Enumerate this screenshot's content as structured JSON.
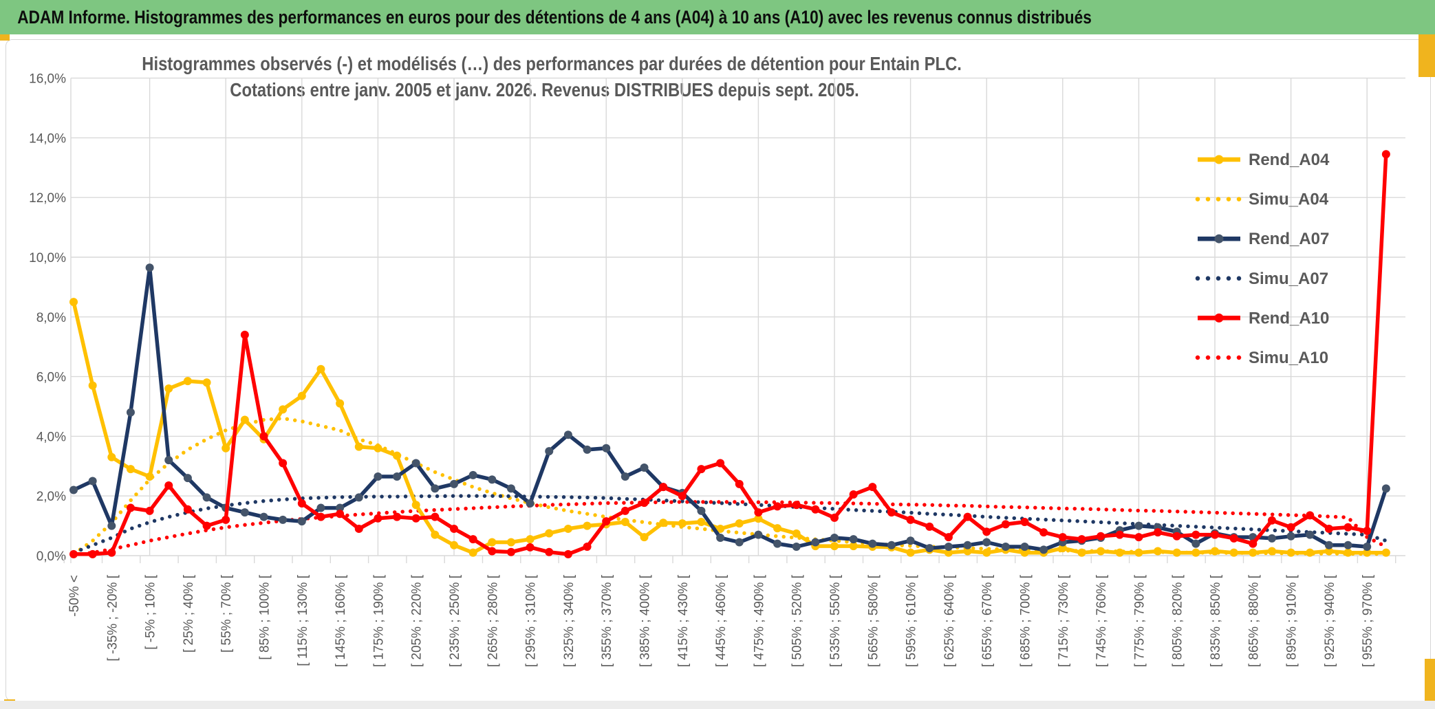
{
  "banner": {
    "title": "ADAM Informe. Histogrammes des performances en euros pour des détentions de 4 ans (A04) à 10 ans (A10) avec les revenus connus distribués"
  },
  "chart_data": {
    "type": "line",
    "title_lines": [
      "Histogrammes observés (-) et modélisés (…) des performances par durées de détention pour Entain PLC.",
      "Cotations entre janv. 2005 et janv. 2026. Revenus DISTRIBUES depuis sept. 2005."
    ],
    "ylabel": "",
    "xlabel": "",
    "ylim": [
      0,
      16
    ],
    "grid": true,
    "legend_position": "right-upper",
    "y_ticks": [
      {
        "value": 0,
        "label": "0,0%"
      },
      {
        "value": 2,
        "label": "2,0%"
      },
      {
        "value": 4,
        "label": "4,0%"
      },
      {
        "value": 6,
        "label": "6,0%"
      },
      {
        "value": 8,
        "label": "8,0%"
      },
      {
        "value": 10,
        "label": "10,0%"
      },
      {
        "value": 12,
        "label": "12,0%"
      },
      {
        "value": 14,
        "label": "14,0%"
      },
      {
        "value": 16,
        "label": "16,0%"
      }
    ],
    "categories": [
      "-50% <",
      "[ -35% ; -20% [",
      "[ -5% ; 10% [",
      "[ 25% ; 40% [",
      "[ 55% ; 70% [",
      "[ 85% ; 100% [",
      "[ 115% ; 130% [",
      "[ 145% ; 160% [",
      "[ 175% ; 190% [",
      "[ 205% ; 220% [",
      "[ 235% ; 250% [",
      "[ 265% ; 280% [",
      "[ 295% ; 310% [",
      "[ 325% ; 340% [",
      "[ 355% ; 370% [",
      "[ 385% ; 400% [",
      "[ 415% ; 430% [",
      "[ 445% ; 460% [",
      "[ 475% ; 490% [",
      "[ 505% ; 520% [",
      "[ 535% ; 550% [",
      "[ 565% ; 580% [",
      "[ 595% ; 610% [",
      "[ 625% ; 640% [",
      "[ 655% ; 670% [",
      "[ 685% ; 700% [",
      "[ 715% ; 730% [",
      "[ 745% ; 760% [",
      "[ 775% ; 790% [",
      "[ 805% ; 820% [",
      "[ 835% ; 850% [",
      "[ 865% ; 880% [",
      "[ 895% ; 910% [",
      "[ 925% ; 940% [",
      "[ 955% ; 970% ["
    ],
    "bins_per_label": 2,
    "n_points": 70,
    "series": [
      {
        "name": "Rend_A04",
        "style": "solid",
        "color": "#FFC000",
        "marker": "#FFC000",
        "values": [
          8.5,
          5.7,
          3.3,
          2.9,
          2.65,
          5.6,
          5.85,
          5.8,
          3.6,
          4.55,
          3.9,
          4.9,
          5.35,
          6.25,
          5.1,
          3.65,
          3.6,
          3.35,
          1.7,
          0.7,
          0.35,
          0.1,
          0.45,
          0.45,
          0.55,
          0.75,
          0.9,
          1.0,
          1.05,
          1.13,
          0.62,
          1.1,
          1.08,
          1.13,
          0.9,
          1.08,
          1.24,
          0.92,
          0.74,
          0.32,
          0.32,
          0.32,
          0.3,
          0.28,
          0.1,
          0.2,
          0.1,
          0.15,
          0.1,
          0.2,
          0.1,
          0.1,
          0.25,
          0.1,
          0.15,
          0.1,
          0.1,
          0.15,
          0.1,
          0.1,
          0.15,
          0.1,
          0.1,
          0.15,
          0.1,
          0.1,
          0.15,
          0.1,
          0.1,
          0.1
        ]
      },
      {
        "name": "Simu_A04",
        "style": "dotted",
        "color": "#FFC000",
        "values": [
          0.05,
          0.5,
          1.1,
          1.85,
          2.55,
          3.1,
          3.55,
          3.9,
          4.2,
          4.4,
          4.55,
          4.6,
          4.5,
          4.35,
          4.2,
          3.9,
          3.7,
          3.4,
          3.1,
          2.8,
          2.55,
          2.3,
          2.1,
          1.92,
          1.76,
          1.62,
          1.5,
          1.4,
          1.3,
          1.2,
          1.12,
          1.04,
          0.96,
          0.9,
          0.83,
          0.77,
          0.71,
          0.65,
          0.6,
          0.55,
          0.5,
          0.45,
          0.4,
          0.36,
          0.33,
          0.3,
          0.28,
          0.25,
          0.23,
          0.21,
          0.2,
          0.18,
          0.17,
          0.16,
          0.15,
          0.14,
          0.13,
          0.12,
          0.11,
          0.1,
          0.1,
          0.09,
          0.09,
          0.08,
          0.08,
          0.07,
          0.07,
          0.06,
          0.06,
          0.05
        ]
      },
      {
        "name": "Rend_A07",
        "style": "solid",
        "color": "#1F3864",
        "marker": "#44546A",
        "values": [
          2.2,
          2.5,
          1.0,
          4.8,
          9.65,
          3.2,
          2.6,
          1.95,
          1.6,
          1.45,
          1.3,
          1.2,
          1.15,
          1.6,
          1.6,
          1.95,
          2.65,
          2.65,
          3.1,
          2.25,
          2.4,
          2.7,
          2.55,
          2.25,
          1.75,
          3.5,
          4.05,
          3.55,
          3.6,
          2.65,
          2.95,
          2.3,
          2.1,
          1.5,
          0.6,
          0.45,
          0.7,
          0.4,
          0.3,
          0.45,
          0.6,
          0.55,
          0.4,
          0.35,
          0.5,
          0.25,
          0.3,
          0.35,
          0.45,
          0.3,
          0.3,
          0.2,
          0.45,
          0.5,
          0.6,
          0.85,
          1.0,
          0.95,
          0.8,
          0.4,
          0.75,
          0.62,
          0.62,
          0.58,
          0.65,
          0.7,
          0.35,
          0.35,
          0.3,
          2.25
        ]
      },
      {
        "name": "Simu_A07",
        "style": "dotted",
        "color": "#1F3864",
        "values": [
          0.1,
          0.35,
          0.6,
          0.9,
          1.12,
          1.3,
          1.45,
          1.58,
          1.68,
          1.76,
          1.83,
          1.88,
          1.92,
          1.94,
          1.96,
          1.97,
          1.98,
          1.98,
          1.99,
          1.99,
          2.0,
          2.0,
          2.0,
          1.99,
          1.98,
          1.97,
          1.96,
          1.95,
          1.93,
          1.9,
          1.88,
          1.85,
          1.82,
          1.79,
          1.76,
          1.73,
          1.7,
          1.67,
          1.63,
          1.6,
          1.57,
          1.53,
          1.5,
          1.47,
          1.44,
          1.4,
          1.37,
          1.34,
          1.3,
          1.27,
          1.24,
          1.21,
          1.18,
          1.15,
          1.12,
          1.09,
          1.06,
          1.03,
          1.0,
          0.97,
          0.94,
          0.91,
          0.88,
          0.85,
          0.82,
          0.79,
          0.76,
          0.73,
          0.7,
          0.5
        ]
      },
      {
        "name": "Rend_A10",
        "style": "solid",
        "color": "#FF0000",
        "marker": "#FF0000",
        "values": [
          0.05,
          0.05,
          0.1,
          1.6,
          1.5,
          2.35,
          1.55,
          1.0,
          1.2,
          7.4,
          4.0,
          3.1,
          1.75,
          1.3,
          1.4,
          0.9,
          1.25,
          1.3,
          1.25,
          1.3,
          0.9,
          0.55,
          0.15,
          0.12,
          0.28,
          0.12,
          0.05,
          0.3,
          1.15,
          1.5,
          1.77,
          2.3,
          2.0,
          2.9,
          3.1,
          2.4,
          1.45,
          1.65,
          1.7,
          1.55,
          1.27,
          2.05,
          2.3,
          1.45,
          1.2,
          0.97,
          0.62,
          1.3,
          0.8,
          1.05,
          1.13,
          0.78,
          0.62,
          0.55,
          0.65,
          0.7,
          0.62,
          0.78,
          0.65,
          0.7,
          0.7,
          0.58,
          0.4,
          1.18,
          0.95,
          1.35,
          0.9,
          0.95,
          0.83,
          13.45
        ]
      },
      {
        "name": "Simu_A10",
        "style": "dotted",
        "color": "#FF0000",
        "values": [
          0.02,
          0.1,
          0.22,
          0.35,
          0.5,
          0.62,
          0.74,
          0.85,
          0.95,
          1.03,
          1.1,
          1.17,
          1.23,
          1.28,
          1.33,
          1.38,
          1.42,
          1.46,
          1.5,
          1.53,
          1.56,
          1.59,
          1.62,
          1.65,
          1.67,
          1.7,
          1.72,
          1.74,
          1.76,
          1.77,
          1.78,
          1.79,
          1.8,
          1.8,
          1.8,
          1.8,
          1.79,
          1.79,
          1.78,
          1.77,
          1.76,
          1.75,
          1.74,
          1.72,
          1.71,
          1.7,
          1.68,
          1.67,
          1.65,
          1.63,
          1.62,
          1.6,
          1.58,
          1.57,
          1.55,
          1.53,
          1.51,
          1.5,
          1.48,
          1.46,
          1.44,
          1.42,
          1.4,
          1.38,
          1.36,
          1.34,
          1.31,
          1.28,
          0.62,
          0.3
        ]
      }
    ],
    "colors": {
      "gold": "#FFC000",
      "navy": "#1F3864",
      "navy_marker": "#44546A",
      "red": "#FF0000",
      "grid": "#D9D9D9",
      "axis_text": "#595959",
      "banner_green": "#7EC681",
      "accent_yellow": "#F0B41E"
    }
  }
}
